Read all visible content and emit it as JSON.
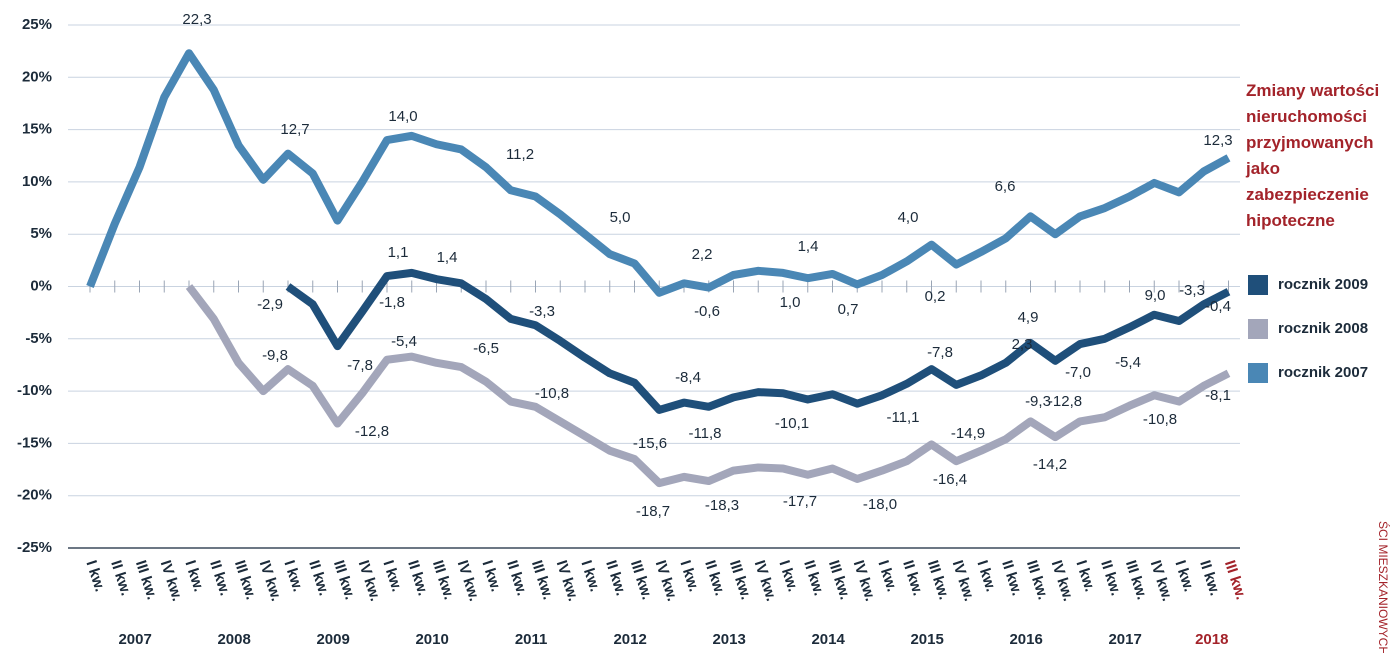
{
  "chart_data": {
    "type": "line",
    "title": "Zmiany wartości nieruchomości przyjmowanych jako zabezpieczenie hipoteczne",
    "side_note": "ŚCI MIESZKANIOWYCH",
    "categories": [
      "I kw.",
      "II kw.",
      "III kw.",
      "IV kw.",
      "I kw.",
      "II kw.",
      "III kw.",
      "IV kw.",
      "I kw.",
      "II kw.",
      "III kw.",
      "IV kw.",
      "I kw.",
      "II kw.",
      "III kw.",
      "IV kw.",
      "I kw.",
      "II kw.",
      "III kw.",
      "IV kw.",
      "I kw.",
      "II kw.",
      "III kw.",
      "IV kw.",
      "I kw.",
      "II kw.",
      "III kw.",
      "IV kw.",
      "I kw.",
      "II kw.",
      "III kw.",
      "IV kw.",
      "I kw.",
      "II kw.",
      "III kw.",
      "IV kw.",
      "I kw.",
      "II kw.",
      "III kw.",
      "IV kw.",
      "I kw.",
      "II kw.",
      "III kw.",
      "IV kw.",
      "I kw.",
      "II kw.",
      "III kw."
    ],
    "years": [
      "2007",
      "2008",
      "2009",
      "2010",
      "2011",
      "2012",
      "2013",
      "2014",
      "2015",
      "2016",
      "2017",
      "2018"
    ],
    "highlight_color": "#a3232a",
    "ylim": [
      -25,
      25
    ],
    "yticks": [
      {
        "value": 25,
        "label": "25%"
      },
      {
        "value": 20,
        "label": "20%"
      },
      {
        "value": 15,
        "label": "15%"
      },
      {
        "value": 10,
        "label": "10%"
      },
      {
        "value": 5,
        "label": "5%"
      },
      {
        "value": 0,
        "label": "0%"
      },
      {
        "value": -5,
        "label": "-5%"
      },
      {
        "value": -10,
        "label": "-10%"
      },
      {
        "value": -15,
        "label": "-15%"
      },
      {
        "value": -20,
        "label": "-20%"
      },
      {
        "value": -25,
        "label": "-25%"
      }
    ],
    "grid": true,
    "legend": "right",
    "series": [
      {
        "name": "rocznik 2009",
        "color": "#1f4f7a",
        "values": [
          null,
          null,
          null,
          null,
          null,
          null,
          null,
          null,
          0,
          -1.7,
          -5.7,
          -2.4,
          1.0,
          1.3,
          0.7,
          0.3,
          -1.2,
          -3.1,
          -3.7,
          -5.2,
          -6.8,
          -8.3,
          -9.2,
          -11.8,
          -11.1,
          -11.5,
          -10.6,
          -10.1,
          -10.2,
          -10.8,
          -10.3,
          -11.2,
          -10.4,
          -9.3,
          -7.9,
          -9.4,
          -8.5,
          -7.3,
          -5.4,
          -7.1,
          -5.5,
          -5.0,
          -3.9,
          -2.7,
          -3.3,
          -1.7,
          -0.5
        ]
      },
      {
        "name": "rocznik 2008",
        "color": "#a3a6ba",
        "values": [
          null,
          null,
          null,
          null,
          0,
          -3.1,
          -7.3,
          -10.0,
          -7.9,
          -9.5,
          -13.1,
          -10.2,
          -7.0,
          -6.7,
          -7.3,
          -7.7,
          -9.1,
          -11.0,
          -11.5,
          -12.9,
          -14.3,
          -15.7,
          -16.5,
          -18.8,
          -18.2,
          -18.6,
          -17.6,
          -17.3,
          -17.4,
          -18.0,
          -17.4,
          -18.4,
          -17.6,
          -16.7,
          -15.1,
          -16.7,
          -15.7,
          -14.6,
          -12.9,
          -14.4,
          -12.9,
          -12.5,
          -11.4,
          -10.4,
          -11.0,
          -9.5,
          -8.3
        ]
      },
      {
        "name": "rocznik 2007",
        "color": "#4a87b5",
        "values": [
          0,
          6.0,
          11.4,
          18.1,
          22.3,
          18.8,
          13.5,
          10.2,
          12.7,
          10.8,
          6.3,
          10.0,
          14.0,
          14.4,
          13.6,
          13.1,
          11.4,
          9.2,
          8.6,
          6.9,
          5.0,
          3.1,
          2.2,
          -0.6,
          0.3,
          -0.1,
          1.1,
          1.5,
          1.3,
          0.8,
          1.2,
          0.2,
          1.1,
          2.4,
          4.0,
          2.1,
          3.3,
          4.6,
          6.7,
          5.0,
          6.7,
          7.5,
          8.6,
          9.9,
          9.0,
          11.0,
          12.3
        ]
      }
    ],
    "annotations": [
      "22,3",
      "12,7",
      "14,0",
      "11,2",
      "5,0",
      "2,2",
      "1,4",
      "4,0",
      "6,6",
      "12,3",
      "1,1",
      "1,4",
      "2,3",
      "-2,9",
      "-1,8",
      "-0,6",
      "1,0",
      "0,7",
      "0,2",
      "4,9",
      "9,0",
      "-3,3",
      "-0,4",
      "-7,8",
      "-3,3",
      "-6,5",
      "-5,4",
      "-9,8",
      "-7,8",
      "-5,4",
      "-7,0",
      "-8,4",
      "-12,8",
      "-10,8",
      "-15,6",
      "-11,8",
      "-10,1",
      "-11,1",
      "-14,9",
      "-9,3",
      "-12,8",
      "-14,2",
      "-16,4",
      "-18,7",
      "-18,3",
      "-17,7",
      "-18,0",
      "-10,8",
      "-8,1"
    ]
  }
}
